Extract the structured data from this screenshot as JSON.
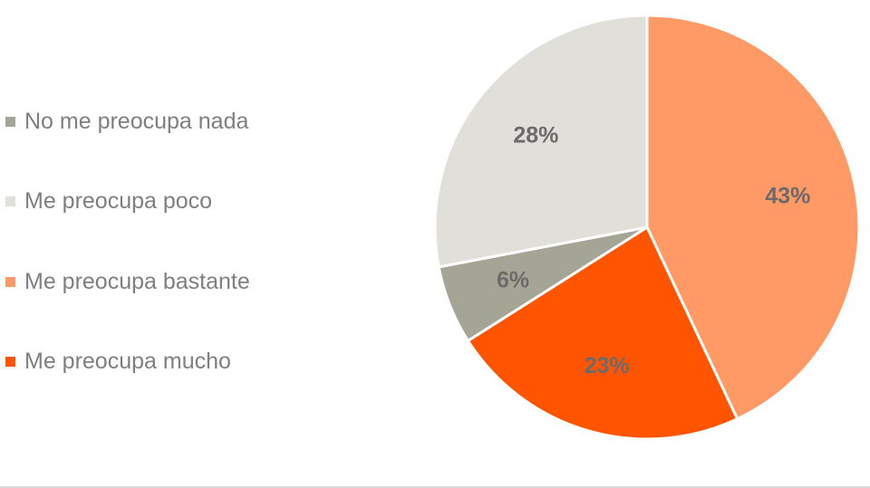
{
  "chart_data": {
    "type": "pie",
    "title": "",
    "legend_position": "left",
    "start_angle": "top",
    "direction": "clockwise",
    "slices": [
      {
        "label": "Me preocupa bastante",
        "value": 43,
        "data_label": "43%",
        "color": "#ff9966"
      },
      {
        "label": "Me preocupa mucho",
        "value": 23,
        "data_label": "23%",
        "color": "#ff5500"
      },
      {
        "label": "No me preocupa nada",
        "value": 6,
        "data_label": "6%",
        "color": "#a5a596"
      },
      {
        "label": "Me preocupa poco",
        "value": 28,
        "data_label": "28%",
        "color": "#e0dfd9"
      }
    ],
    "legend": [
      {
        "label": "No me preocupa nada",
        "color": "#a5a596"
      },
      {
        "label": "Me preocupa poco",
        "color": "#e0dfd9"
      },
      {
        "label": "Me preocupa bastante",
        "color": "#ff9966"
      },
      {
        "label": "Me preocupa mucho",
        "color": "#ff5500"
      }
    ],
    "data_label_color": "#6b6b6b"
  }
}
